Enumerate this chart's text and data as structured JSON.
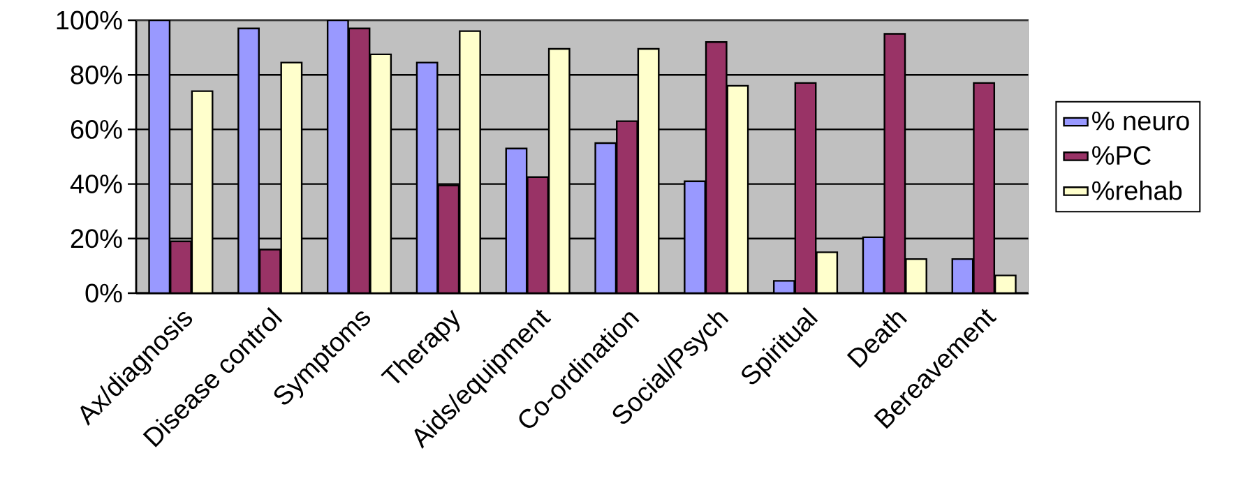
{
  "chart_data": {
    "type": "bar",
    "categories": [
      "Ax/diagnosis",
      "Disease control",
      "Symptoms",
      "Therapy",
      "Aids/equipment",
      "Co-ordination",
      "Social/Psych",
      "Spiritual",
      "Death",
      "Bereavement"
    ],
    "series": [
      {
        "name": "% neuro",
        "color": "#9999ff",
        "values": [
          100,
          97,
          100,
          84.5,
          53,
          55,
          41,
          4.5,
          20.5,
          12.5
        ]
      },
      {
        "name": "%PC",
        "color": "#993366",
        "values": [
          19,
          16,
          97,
          39.5,
          42.5,
          63,
          92,
          77,
          95,
          77
        ]
      },
      {
        "name": "%rehab",
        "color": "#ffffcc",
        "values": [
          74,
          84.5,
          87.5,
          96,
          89.5,
          89.5,
          76,
          15,
          12.5,
          6.5
        ]
      }
    ],
    "ylim": [
      0,
      100
    ],
    "yticks": [
      {
        "value": 0,
        "label": "0%"
      },
      {
        "value": 20,
        "label": "20%"
      },
      {
        "value": 40,
        "label": "40%"
      },
      {
        "value": 60,
        "label": "60%"
      },
      {
        "value": 80,
        "label": "80%"
      },
      {
        "value": 100,
        "label": "100%"
      }
    ],
    "grid": "y",
    "legend": "right"
  }
}
